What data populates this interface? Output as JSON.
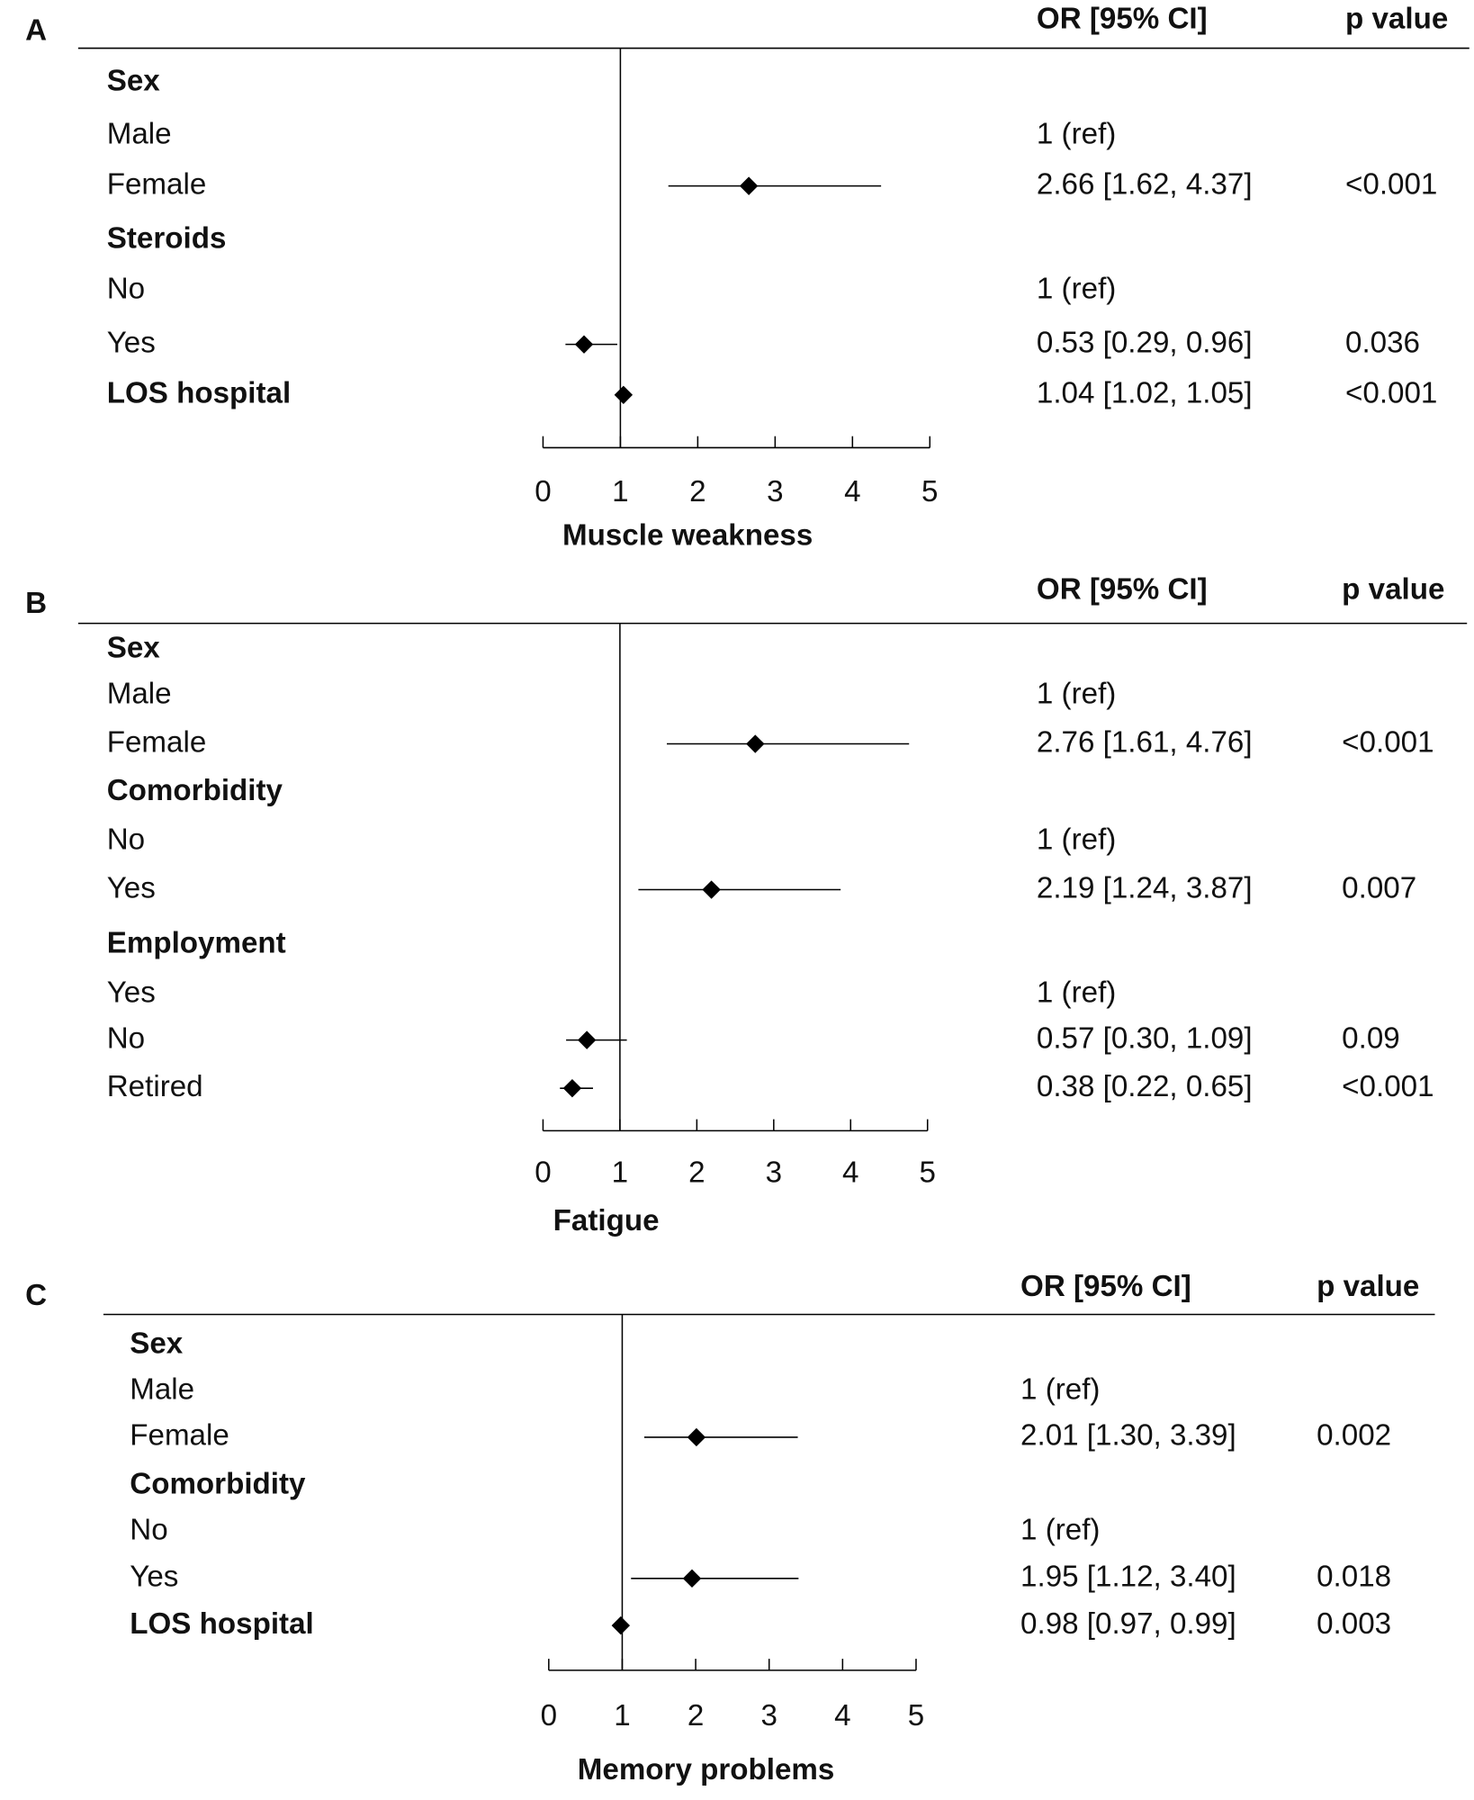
{
  "chart_data": [
    {
      "type": "forest",
      "panel": "A",
      "xlabel": "Muscle weakness",
      "columns": [
        "OR [95% CI]",
        "p value"
      ],
      "xlim": [
        0,
        5
      ],
      "xticks": [
        0,
        1,
        2,
        3,
        4,
        5
      ],
      "ref_line": 1,
      "color": "#000000",
      "rows": [
        {
          "label": "Sex",
          "header": true
        },
        {
          "label": "Male",
          "estimate_label": "1 (ref)"
        },
        {
          "label": "Female",
          "value": 2.66,
          "lower": 1.62,
          "upper": 4.37,
          "estimate_label": "2.66 [1.62, 4.37]",
          "p": "<0.001"
        },
        {
          "label": "Steroids",
          "header": true
        },
        {
          "label": "No",
          "estimate_label": "1 (ref)"
        },
        {
          "label": "Yes",
          "value": 0.53,
          "lower": 0.29,
          "upper": 0.96,
          "estimate_label": "0.53 [0.29, 0.96]",
          "p": "0.036"
        },
        {
          "label": "LOS hospital",
          "header": true,
          "value": 1.04,
          "lower": 1.02,
          "upper": 1.05,
          "estimate_label": "1.04 [1.02, 1.05]",
          "p": "<0.001"
        }
      ]
    },
    {
      "type": "forest",
      "panel": "B",
      "xlabel": "Fatigue",
      "columns": [
        "OR [95% CI]",
        "p value"
      ],
      "xlim": [
        0,
        5
      ],
      "xticks": [
        0,
        1,
        2,
        3,
        4,
        5
      ],
      "ref_line": 1,
      "color": "#000000",
      "rows": [
        {
          "label": "Sex",
          "header": true
        },
        {
          "label": "Male",
          "estimate_label": "1 (ref)"
        },
        {
          "label": "Female",
          "value": 2.76,
          "lower": 1.61,
          "upper": 4.76,
          "estimate_label": "2.76 [1.61, 4.76]",
          "p": "<0.001"
        },
        {
          "label": "Comorbidity",
          "header": true
        },
        {
          "label": "No",
          "estimate_label": "1 (ref)"
        },
        {
          "label": "Yes",
          "value": 2.19,
          "lower": 1.24,
          "upper": 3.87,
          "estimate_label": "2.19 [1.24, 3.87]",
          "p": "0.007"
        },
        {
          "label": "Employment",
          "header": true
        },
        {
          "label": "Yes",
          "estimate_label": "1 (ref)"
        },
        {
          "label": "No",
          "value": 0.57,
          "lower": 0.3,
          "upper": 1.09,
          "estimate_label": "0.57 [0.30, 1.09]",
          "p": "0.09"
        },
        {
          "label": "Retired",
          "value": 0.38,
          "lower": 0.22,
          "upper": 0.65,
          "estimate_label": "0.38 [0.22, 0.65]",
          "p": "<0.001"
        }
      ]
    },
    {
      "type": "forest",
      "panel": "C",
      "xlabel": "Memory problems",
      "columns": [
        "OR [95% CI]",
        "p value"
      ],
      "xlim": [
        0,
        5
      ],
      "xticks": [
        0,
        1,
        2,
        3,
        4,
        5
      ],
      "ref_line": 1,
      "color": "#000000",
      "rows": [
        {
          "label": "Sex",
          "header": true
        },
        {
          "label": "Male",
          "estimate_label": "1 (ref)"
        },
        {
          "label": "Female",
          "value": 2.01,
          "lower": 1.3,
          "upper": 3.39,
          "estimate_label": "2.01 [1.30, 3.39]",
          "p": "0.002"
        },
        {
          "label": "Comorbidity",
          "header": true
        },
        {
          "label": "No",
          "estimate_label": "1 (ref)"
        },
        {
          "label": "Yes",
          "value": 1.95,
          "lower": 1.12,
          "upper": 3.4,
          "estimate_label": "1.95 [1.12, 3.40]",
          "p": "0.018"
        },
        {
          "label": "LOS hospital",
          "header": true,
          "value": 0.98,
          "lower": 0.97,
          "upper": 0.99,
          "estimate_label": "0.98 [0.97, 0.99]",
          "p": "0.003"
        }
      ]
    }
  ]
}
